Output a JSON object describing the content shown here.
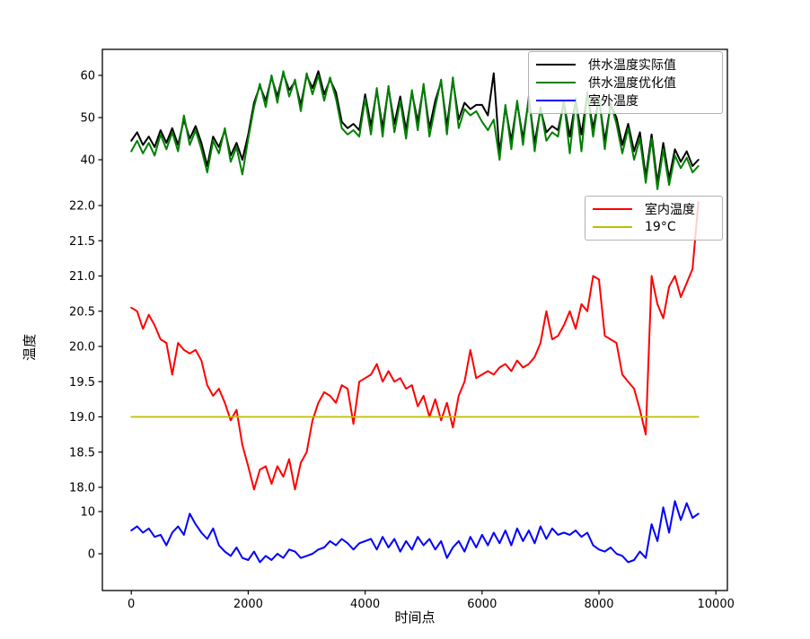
{
  "figure": {
    "xlabel": "时间点",
    "ylabel": "温度",
    "background": "#ffffff"
  },
  "legend_top": {
    "items": [
      {
        "label": "供水温度实际值",
        "color": "#000000"
      },
      {
        "label": "供水温度优化值",
        "color": "#008000"
      },
      {
        "label": "室外温度",
        "color": "#0000ff"
      }
    ]
  },
  "legend_mid": {
    "items": [
      {
        "label": "室内温度",
        "color": "#ff0000"
      },
      {
        "label": "19°C",
        "color": "#bfbf00"
      }
    ]
  },
  "chart_data": {
    "type": "line",
    "title": "",
    "xlabel": "时间点",
    "ylabel": "温度",
    "grid": false,
    "x_start": 0,
    "x_step": 100,
    "xlim": [
      -500,
      10300
    ],
    "x_ticks": [
      0,
      2000,
      4000,
      6000,
      8000,
      10000
    ],
    "x_tick_labels": [
      "0",
      "2000",
      "4000",
      "6000",
      "8000",
      "10000"
    ],
    "legend_top_position": "upper right",
    "legend_mid_position": "middle right",
    "bands": [
      {
        "name": "supply_temperature",
        "scale": "supply",
        "ylim": [
          32,
          66
        ],
        "y_ticks": [
          60,
          50,
          40
        ],
        "y_tick_labels": [
          "60",
          "50",
          "40"
        ],
        "series": [
          {
            "key": "supply-actual",
            "name": "供水温度实际值",
            "color": "#000000",
            "values": [
              44.5,
              46.5,
              43.5,
              45.5,
              43,
              47,
              44,
              47.5,
              43.5,
              49.5,
              45,
              48,
              44,
              38.5,
              45.5,
              43,
              47,
              41,
              44,
              40,
              46,
              53.5,
              57.5,
              54,
              59.5,
              55,
              60.5,
              56.5,
              58.5,
              53,
              60,
              57,
              61,
              55.5,
              59,
              56,
              49,
              47.5,
              48.5,
              47,
              55.5,
              48,
              56.5,
              47.5,
              57,
              48.5,
              55,
              47,
              56,
              49,
              57.5,
              47.5,
              54,
              58.5,
              48,
              59,
              49.5,
              53.5,
              52,
              53,
              53,
              50.5,
              60.5,
              41.5,
              52.5,
              44.5,
              53.5,
              45,
              54.5,
              44,
              52,
              46.5,
              48,
              47,
              53.5,
              45.5,
              54,
              46,
              55.5,
              47.5,
              54.5,
              44.5,
              53,
              50,
              43.5,
              48.5,
              42,
              46.5,
              36,
              46,
              34.5,
              44,
              35.5,
              42.5,
              39.5,
              42,
              38.5,
              40
            ]
          },
          {
            "key": "supply-optimized",
            "name": "供水温度优化值",
            "color": "#008000",
            "values": [
              42,
              44.5,
              41.5,
              44,
              41,
              46,
              42.5,
              46.5,
              42,
              50.5,
              43.5,
              47,
              42.5,
              37,
              44.5,
              41.5,
              47.5,
              39.5,
              43,
              36.5,
              45,
              52.5,
              58,
              52.5,
              60,
              53.5,
              61,
              55,
              59,
              51.5,
              60.5,
              55.5,
              60,
              54,
              59.5,
              54.5,
              47.5,
              46,
              47,
              45.5,
              54.5,
              46,
              57,
              45.5,
              57.5,
              46.5,
              54,
              45,
              56.5,
              47,
              58,
              45.5,
              52.5,
              59,
              46,
              59.5,
              47.5,
              52,
              50.5,
              51.5,
              49,
              47,
              49.5,
              40,
              53,
              42.5,
              54,
              43.5,
              55,
              42,
              52.5,
              44.5,
              46.5,
              45.5,
              54,
              41.5,
              54.5,
              42,
              56,
              45.5,
              55,
              42.5,
              53.5,
              48.5,
              41.5,
              47.5,
              40,
              45,
              34.5,
              45,
              33,
              42.5,
              34,
              41,
              38,
              40.5,
              37,
              38.5
            ]
          }
        ]
      },
      {
        "name": "indoor_temperature",
        "scale": "indoor",
        "ylim": [
          17.6,
          22.4
        ],
        "y_ticks": [
          22.0,
          21.5,
          21.0,
          20.5,
          20.0,
          19.5,
          19.0,
          18.5,
          18.0
        ],
        "y_tick_labels": [
          "22.0",
          "21.5",
          "21.0",
          "20.5",
          "20.0",
          "19.5",
          "19.0",
          "18.5",
          "18.0"
        ],
        "series": [
          {
            "key": "indoor",
            "name": "室内温度",
            "color": "#ff0000",
            "values": [
              20.55,
              20.5,
              20.25,
              20.45,
              20.3,
              20.1,
              20.05,
              19.6,
              20.05,
              19.95,
              19.9,
              19.95,
              19.8,
              19.45,
              19.3,
              19.4,
              19.2,
              18.95,
              19.1,
              18.6,
              18.3,
              17.97,
              18.25,
              18.3,
              18.05,
              18.3,
              18.15,
              18.4,
              17.97,
              18.35,
              18.5,
              18.95,
              19.2,
              19.35,
              19.3,
              19.2,
              19.45,
              19.4,
              18.9,
              19.5,
              19.55,
              19.6,
              19.75,
              19.5,
              19.65,
              19.5,
              19.55,
              19.4,
              19.45,
              19.15,
              19.3,
              19.0,
              19.25,
              18.95,
              19.2,
              18.85,
              19.3,
              19.5,
              19.95,
              19.55,
              19.6,
              19.65,
              19.6,
              19.7,
              19.75,
              19.65,
              19.8,
              19.7,
              19.75,
              19.85,
              20.05,
              20.5,
              20.1,
              20.15,
              20.3,
              20.5,
              20.25,
              20.6,
              20.5,
              21.0,
              20.95,
              20.15,
              20.1,
              20.05,
              19.6,
              19.5,
              19.4,
              19.1,
              18.75,
              21.0,
              20.6,
              20.4,
              20.85,
              21.0,
              20.7,
              20.9,
              21.1,
              22.05
            ]
          },
          {
            "key": "threshold-19c",
            "name": "19°C",
            "color": "#bfbf00",
            "constant": 19,
            "x_range": [
              0,
              9700
            ],
            "width": 1.8
          }
        ]
      },
      {
        "name": "outdoor_temperature",
        "scale": "outdoor",
        "ylim": [
          -9,
          14
        ],
        "y_ticks": [
          10,
          0
        ],
        "y_tick_labels": [
          "10",
          "0"
        ],
        "series": [
          {
            "key": "outdoor",
            "name": "室外温度",
            "color": "#0000ff",
            "values": [
              5.5,
              6.5,
              5,
              6,
              4,
              4.5,
              2,
              5,
              6.5,
              4.5,
              9.5,
              7,
              5,
              3.5,
              6,
              2,
              0.5,
              -0.5,
              1.5,
              -1,
              -1.5,
              0.5,
              -2,
              -0.5,
              -1.5,
              0,
              -1,
              1,
              0.5,
              -1,
              -0.5,
              0,
              1,
              1.5,
              3,
              2,
              3.5,
              2.5,
              1,
              2.5,
              3,
              3.5,
              1,
              4,
              1.5,
              3.5,
              0.5,
              3,
              1,
              4,
              2,
              3.5,
              1,
              3,
              -1,
              1.5,
              3,
              0.5,
              4,
              1.5,
              4.5,
              2,
              5,
              2.5,
              5.5,
              2,
              6,
              3,
              5.5,
              2.5,
              6.5,
              3.5,
              6,
              4.5,
              5,
              4.5,
              5.5,
              4,
              5,
              2,
              1,
              0.5,
              1.5,
              0,
              -0.5,
              -2,
              -1.5,
              0.5,
              -1,
              7,
              3,
              11,
              5,
              12.5,
              8,
              12,
              8.5,
              9.5
            ]
          }
        ]
      }
    ]
  }
}
